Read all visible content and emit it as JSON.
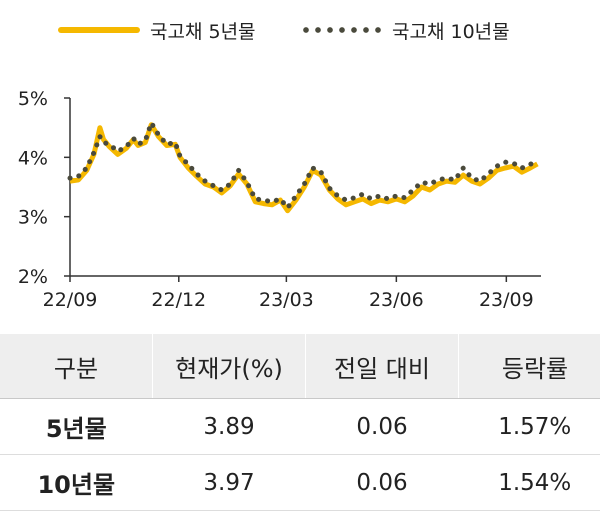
{
  "legend": {
    "series_5y": "국고채 5년물",
    "series_10y": "국고채 10년물"
  },
  "colors": {
    "series_5y": "#f5b800",
    "series_10y": "#4a4a3c",
    "axis": "#333333"
  },
  "chart_data": {
    "type": "line",
    "title": "",
    "xlabel": "",
    "ylabel": "",
    "x_range": [
      "2022-09-01",
      "2023-09-30"
    ],
    "x_ticks": [
      {
        "label": "22/09",
        "date": "2022-09-01"
      },
      {
        "label": "22/12",
        "date": "2022-12-01"
      },
      {
        "label": "23/03",
        "date": "2023-03-01"
      },
      {
        "label": "23/06",
        "date": "2023-06-01"
      },
      {
        "label": "23/09",
        "date": "2023-09-01"
      }
    ],
    "ylim": [
      2,
      5
    ],
    "y_ticks": [
      {
        "label": "2%",
        "value": 2
      },
      {
        "label": "3%",
        "value": 3
      },
      {
        "label": "4%",
        "value": 4
      },
      {
        "label": "5%",
        "value": 5
      }
    ],
    "y_unit": "%",
    "grid": false,
    "legend_position": "top",
    "series": [
      {
        "name": "국고채 5년물",
        "style": "solid",
        "points": [
          [
            "2022-09-01",
            3.6
          ],
          [
            "2022-09-08",
            3.62
          ],
          [
            "2022-09-15",
            3.78
          ],
          [
            "2022-09-21",
            4.05
          ],
          [
            "2022-09-26",
            4.5
          ],
          [
            "2022-09-29",
            4.3
          ],
          [
            "2022-10-04",
            4.18
          ],
          [
            "2022-10-11",
            4.05
          ],
          [
            "2022-10-18",
            4.15
          ],
          [
            "2022-10-24",
            4.3
          ],
          [
            "2022-10-28",
            4.2
          ],
          [
            "2022-11-03",
            4.25
          ],
          [
            "2022-11-08",
            4.55
          ],
          [
            "2022-11-14",
            4.35
          ],
          [
            "2022-11-21",
            4.2
          ],
          [
            "2022-11-28",
            4.22
          ],
          [
            "2022-12-02",
            4.0
          ],
          [
            "2022-12-09",
            3.82
          ],
          [
            "2022-12-16",
            3.68
          ],
          [
            "2022-12-23",
            3.55
          ],
          [
            "2022-12-30",
            3.5
          ],
          [
            "2023-01-06",
            3.4
          ],
          [
            "2023-01-13",
            3.52
          ],
          [
            "2023-01-20",
            3.72
          ],
          [
            "2023-01-27",
            3.55
          ],
          [
            "2023-02-03",
            3.25
          ],
          [
            "2023-02-10",
            3.22
          ],
          [
            "2023-02-17",
            3.2
          ],
          [
            "2023-02-24",
            3.28
          ],
          [
            "2023-03-02",
            3.1
          ],
          [
            "2023-03-09",
            3.28
          ],
          [
            "2023-03-16",
            3.5
          ],
          [
            "2023-03-23",
            3.78
          ],
          [
            "2023-03-30",
            3.7
          ],
          [
            "2023-04-06",
            3.45
          ],
          [
            "2023-04-13",
            3.3
          ],
          [
            "2023-04-20",
            3.2
          ],
          [
            "2023-04-27",
            3.25
          ],
          [
            "2023-05-04",
            3.3
          ],
          [
            "2023-05-11",
            3.22
          ],
          [
            "2023-05-18",
            3.28
          ],
          [
            "2023-05-25",
            3.25
          ],
          [
            "2023-06-01",
            3.3
          ],
          [
            "2023-06-08",
            3.25
          ],
          [
            "2023-06-15",
            3.35
          ],
          [
            "2023-06-22",
            3.5
          ],
          [
            "2023-06-29",
            3.45
          ],
          [
            "2023-07-06",
            3.55
          ],
          [
            "2023-07-13",
            3.6
          ],
          [
            "2023-07-20",
            3.58
          ],
          [
            "2023-07-27",
            3.7
          ],
          [
            "2023-08-03",
            3.6
          ],
          [
            "2023-08-10",
            3.55
          ],
          [
            "2023-08-17",
            3.65
          ],
          [
            "2023-08-24",
            3.78
          ],
          [
            "2023-08-31",
            3.82
          ],
          [
            "2023-09-07",
            3.85
          ],
          [
            "2023-09-14",
            3.75
          ],
          [
            "2023-09-21",
            3.82
          ],
          [
            "2023-09-27",
            3.89
          ]
        ]
      },
      {
        "name": "국고채 10년물",
        "style": "dotted",
        "points": [
          [
            "2022-09-01",
            3.65
          ],
          [
            "2022-09-08",
            3.68
          ],
          [
            "2022-09-15",
            3.82
          ],
          [
            "2022-09-21",
            4.08
          ],
          [
            "2022-09-26",
            4.35
          ],
          [
            "2022-09-29",
            4.25
          ],
          [
            "2022-10-04",
            4.22
          ],
          [
            "2022-10-11",
            4.1
          ],
          [
            "2022-10-18",
            4.18
          ],
          [
            "2022-10-24",
            4.32
          ],
          [
            "2022-10-28",
            4.22
          ],
          [
            "2022-11-03",
            4.28
          ],
          [
            "2022-11-08",
            4.58
          ],
          [
            "2022-11-14",
            4.38
          ],
          [
            "2022-11-21",
            4.22
          ],
          [
            "2022-11-28",
            4.25
          ],
          [
            "2022-12-02",
            4.02
          ],
          [
            "2022-12-09",
            3.88
          ],
          [
            "2022-12-16",
            3.72
          ],
          [
            "2022-12-23",
            3.6
          ],
          [
            "2022-12-30",
            3.52
          ],
          [
            "2023-01-06",
            3.45
          ],
          [
            "2023-01-13",
            3.55
          ],
          [
            "2023-01-20",
            3.78
          ],
          [
            "2023-01-27",
            3.58
          ],
          [
            "2023-02-03",
            3.3
          ],
          [
            "2023-02-10",
            3.28
          ],
          [
            "2023-02-17",
            3.25
          ],
          [
            "2023-02-24",
            3.3
          ],
          [
            "2023-03-02",
            3.15
          ],
          [
            "2023-03-09",
            3.35
          ],
          [
            "2023-03-16",
            3.55
          ],
          [
            "2023-03-23",
            3.82
          ],
          [
            "2023-03-30",
            3.75
          ],
          [
            "2023-04-06",
            3.48
          ],
          [
            "2023-04-13",
            3.35
          ],
          [
            "2023-04-20",
            3.28
          ],
          [
            "2023-04-27",
            3.32
          ],
          [
            "2023-05-04",
            3.38
          ],
          [
            "2023-05-11",
            3.3
          ],
          [
            "2023-05-18",
            3.35
          ],
          [
            "2023-05-25",
            3.3
          ],
          [
            "2023-06-01",
            3.35
          ],
          [
            "2023-06-08",
            3.32
          ],
          [
            "2023-06-15",
            3.45
          ],
          [
            "2023-06-22",
            3.58
          ],
          [
            "2023-06-29",
            3.55
          ],
          [
            "2023-07-06",
            3.62
          ],
          [
            "2023-07-13",
            3.65
          ],
          [
            "2023-07-20",
            3.62
          ],
          [
            "2023-07-27",
            3.82
          ],
          [
            "2023-08-03",
            3.65
          ],
          [
            "2023-08-10",
            3.6
          ],
          [
            "2023-08-17",
            3.72
          ],
          [
            "2023-08-24",
            3.85
          ],
          [
            "2023-08-31",
            3.92
          ],
          [
            "2023-09-07",
            3.9
          ],
          [
            "2023-09-14",
            3.82
          ],
          [
            "2023-09-21",
            3.88
          ],
          [
            "2023-09-27",
            3.97
          ]
        ]
      }
    ]
  },
  "table": {
    "headers": [
      "구분",
      "현재가(%)",
      "전일 대비",
      "등락률"
    ],
    "rows": [
      {
        "label": "5년물",
        "price": "3.89",
        "change": "0.06",
        "rate": "1.57%"
      },
      {
        "label": "10년물",
        "price": "3.97",
        "change": "0.06",
        "rate": "1.54%"
      }
    ]
  }
}
